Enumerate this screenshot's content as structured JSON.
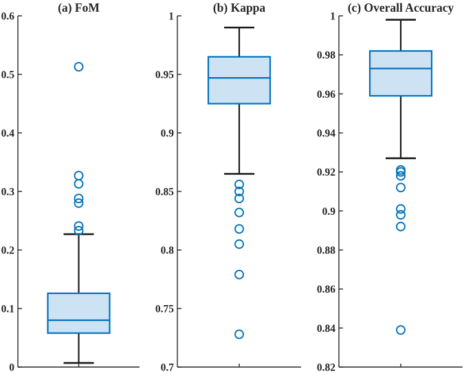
{
  "figure": {
    "background": "#ffffff"
  },
  "colors": {
    "marker_blue": "#0072BD",
    "box_edge": "#0072BD",
    "box_fill": "#CDE2F2",
    "median_line": "#0072BD",
    "whisker_black": "#1a1a1a",
    "axis": "#262626",
    "label_text": "#262626"
  },
  "chart_data": [
    {
      "type": "boxplot",
      "title": "(a) FoM",
      "ylim": [
        0,
        0.6
      ],
      "ytick_values": [
        0,
        0.1,
        0.2,
        0.3,
        0.4,
        0.5,
        0.6
      ],
      "ytick_labels": [
        "0",
        "0.1",
        "0.2",
        "0.3",
        "0.4",
        "0.5",
        "0.6"
      ],
      "box": {
        "whisker_low": 0.007,
        "q1": 0.058,
        "median": 0.08,
        "q3": 0.126,
        "whisker_high": 0.227
      },
      "outliers": [
        0.233,
        0.241,
        0.28,
        0.288,
        0.313,
        0.327,
        0.513
      ],
      "grid": false,
      "legend": null
    },
    {
      "type": "boxplot",
      "title": "(b) Kappa",
      "ylim": [
        0.7,
        1
      ],
      "ytick_values": [
        0.7,
        0.75,
        0.8,
        0.85,
        0.9,
        0.95,
        1
      ],
      "ytick_labels": [
        "0.7",
        "0.75",
        "0.8",
        "0.85",
        "0.9",
        "0.95",
        "1"
      ],
      "box": {
        "whisker_low": 0.865,
        "q1": 0.925,
        "median": 0.947,
        "q3": 0.965,
        "whisker_high": 0.99
      },
      "outliers": [
        0.728,
        0.779,
        0.805,
        0.818,
        0.832,
        0.844,
        0.85,
        0.856
      ],
      "grid": false,
      "legend": null
    },
    {
      "type": "boxplot",
      "title": "(c) Overall Accuracy",
      "ylim": [
        0.82,
        1
      ],
      "ytick_values": [
        0.82,
        0.84,
        0.86,
        0.88,
        0.9,
        0.92,
        0.94,
        0.96,
        0.98,
        1
      ],
      "ytick_labels": [
        "0.82",
        "0.84",
        "0.86",
        "0.88",
        "0.9",
        "0.92",
        "0.94",
        "0.96",
        "0.98",
        "1"
      ],
      "box": {
        "whisker_low": 0.927,
        "q1": 0.959,
        "median": 0.973,
        "q3": 0.982,
        "whisker_high": 0.998
      },
      "outliers": [
        0.839,
        0.892,
        0.898,
        0.901,
        0.912,
        0.918,
        0.92,
        0.921
      ],
      "grid": false,
      "legend": null
    }
  ]
}
